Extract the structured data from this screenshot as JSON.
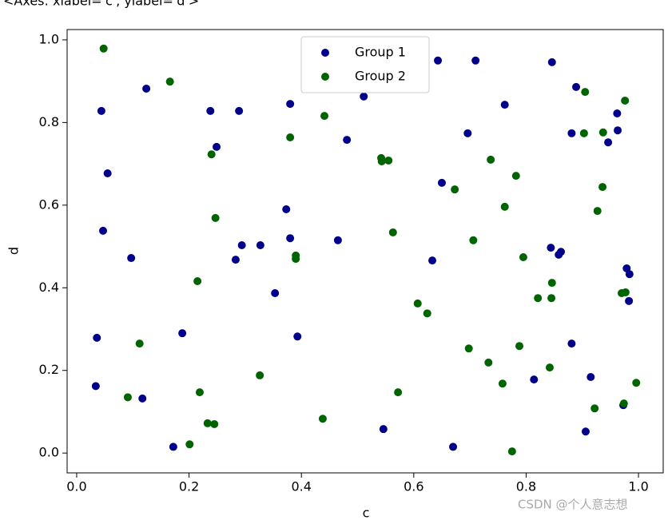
{
  "header": "<Axes: xlabel='c', ylabel='d'>",
  "watermark": "CSDN @个人意志想",
  "chart_data": {
    "type": "scatter",
    "x_label": "c",
    "y_label": "d",
    "xlim": [
      -0.017,
      1.044
    ],
    "ylim": [
      -0.048,
      1.025
    ],
    "xticks": [
      {
        "value": 0,
        "label": "0.0"
      },
      0.2,
      0.4,
      0.6,
      0.8,
      {
        "value": 1,
        "label": "1.0"
      }
    ],
    "yticks": [
      {
        "value": 0,
        "label": "0.0"
      },
      0.2,
      0.4,
      0.6,
      0.8,
      {
        "value": 1,
        "label": "1.0"
      }
    ],
    "legend": "upper center",
    "series": [
      {
        "name": "Group 1",
        "color": "#00008b",
        "x": [
          0.643,
          0.71,
          0.846,
          0.124,
          0.511,
          0.044,
          0.238,
          0.289,
          0.38,
          0.762,
          0.889,
          0.881,
          0.962,
          0.696,
          0.963,
          0.946,
          0.481,
          0.249,
          0.055,
          0.65,
          0.373,
          0.047,
          0.465,
          0.38,
          0.294,
          0.327,
          0.097,
          0.283,
          0.633,
          0.844,
          0.858,
          0.862,
          0.979,
          0.984,
          0.353,
          0.983,
          0.036,
          0.393,
          0.188,
          0.881,
          0.034,
          0.117,
          0.915,
          0.814,
          0.546,
          0.172,
          0.67,
          0.906,
          0.973
        ],
        "values": [
          0.95,
          0.95,
          0.946,
          0.882,
          0.863,
          0.828,
          0.828,
          0.828,
          0.845,
          0.843,
          0.886,
          0.774,
          0.822,
          0.774,
          0.781,
          0.752,
          0.758,
          0.741,
          0.677,
          0.654,
          0.59,
          0.538,
          0.515,
          0.52,
          0.503,
          0.503,
          0.472,
          0.468,
          0.466,
          0.497,
          0.48,
          0.487,
          0.447,
          0.433,
          0.387,
          0.368,
          0.279,
          0.282,
          0.29,
          0.265,
          0.162,
          0.132,
          0.184,
          0.178,
          0.058,
          0.015,
          0.015,
          0.052,
          0.116
        ]
      },
      {
        "name": "Group 2",
        "color": "#006400",
        "x": [
          0.048,
          0.166,
          0.905,
          0.976,
          0.441,
          0.903,
          0.937,
          0.38,
          0.24,
          0.542,
          0.543,
          0.555,
          0.737,
          0.782,
          0.673,
          0.936,
          0.762,
          0.927,
          0.247,
          0.563,
          0.706,
          0.39,
          0.39,
          0.795,
          0.215,
          0.846,
          0.977,
          0.97,
          0.821,
          0.845,
          0.607,
          0.624,
          0.112,
          0.698,
          0.788,
          0.733,
          0.326,
          0.842,
          0.758,
          0.996,
          0.572,
          0.219,
          0.091,
          0.974,
          0.922,
          0.233,
          0.245,
          0.438,
          0.201,
          0.775
        ],
        "values": [
          0.979,
          0.899,
          0.874,
          0.853,
          0.816,
          0.774,
          0.776,
          0.764,
          0.723,
          0.714,
          0.706,
          0.708,
          0.71,
          0.671,
          0.638,
          0.644,
          0.596,
          0.586,
          0.569,
          0.534,
          0.515,
          0.478,
          0.47,
          0.474,
          0.416,
          0.412,
          0.389,
          0.387,
          0.375,
          0.375,
          0.362,
          0.338,
          0.265,
          0.253,
          0.259,
          0.219,
          0.188,
          0.207,
          0.168,
          0.17,
          0.147,
          0.147,
          0.135,
          0.12,
          0.108,
          0.072,
          0.07,
          0.083,
          0.021,
          0.004
        ]
      }
    ]
  }
}
